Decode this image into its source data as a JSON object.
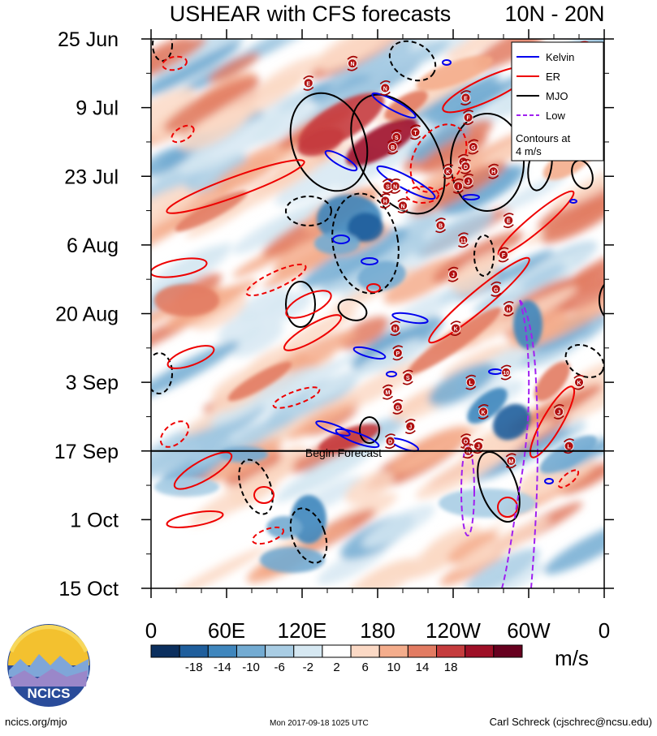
{
  "chart_data": {
    "type": "heatmap",
    "title": "USHEAR with CFS forecasts",
    "region": "10N - 20N",
    "y_tick_labels": [
      "25 Jun",
      "9 Jul",
      "23 Jul",
      "6 Aug",
      "20 Aug",
      "3 Sep",
      "17 Sep",
      "1 Oct",
      "15 Oct"
    ],
    "x_tick_labels": [
      "0",
      "60E",
      "120E",
      "180",
      "120W",
      "60W",
      "0"
    ],
    "x_values": [
      0,
      60,
      120,
      180,
      240,
      300,
      360
    ],
    "ylim_days": [
      0,
      112
    ],
    "colorbar": {
      "ticks": [
        "-18",
        "-14",
        "-10",
        "-6",
        "-2",
        "2",
        "6",
        "10",
        "14",
        "18"
      ],
      "colors": [
        "#0b2f5e",
        "#1f5e9c",
        "#3f86bd",
        "#73abd2",
        "#a9cde4",
        "#d6e8f2",
        "#ffffff",
        "#fbd9c5",
        "#f4ad8c",
        "#e27b62",
        "#c53c3d",
        "#9e1027",
        "#67001f"
      ],
      "units": "m/s"
    },
    "legend": [
      {
        "label": "Kelvin",
        "color": "#0000ee",
        "dash": false
      },
      {
        "label": "ER",
        "color": "#ee0000",
        "dash": false
      },
      {
        "label": "MJO",
        "color": "#000000",
        "dash": false
      },
      {
        "label": "Low",
        "color": "#a020f0",
        "dash": true
      }
    ],
    "legend_note": "Contours at 4 m/s",
    "forecast_line_day": 84,
    "forecast_label": "Begin Forecast",
    "storms": [
      {
        "lon": 160,
        "day": 5,
        "letter": "N"
      },
      {
        "lon": 125,
        "day": 9,
        "letter": "E"
      },
      {
        "lon": 186,
        "day": 10,
        "letter": "N"
      },
      {
        "lon": 250,
        "day": 12,
        "letter": "E"
      },
      {
        "lon": 252,
        "day": 16,
        "letter": "F"
      },
      {
        "lon": 210,
        "day": 19,
        "letter": "T"
      },
      {
        "lon": 195,
        "day": 20,
        "letter": "S"
      },
      {
        "lon": 192,
        "day": 22,
        "letter": "B"
      },
      {
        "lon": 256,
        "day": 22,
        "letter": "G"
      },
      {
        "lon": 248,
        "day": 25,
        "letter": "H"
      },
      {
        "lon": 250,
        "day": 26,
        "letter": "D"
      },
      {
        "lon": 272,
        "day": 27,
        "letter": "H"
      },
      {
        "lon": 236,
        "day": 27,
        "letter": "K"
      },
      {
        "lon": 252,
        "day": 29,
        "letter": "J"
      },
      {
        "lon": 188,
        "day": 30,
        "letter": "S"
      },
      {
        "lon": 194,
        "day": 30,
        "letter": "N"
      },
      {
        "lon": 244,
        "day": 30,
        "letter": "I"
      },
      {
        "lon": 186,
        "day": 33,
        "letter": "H"
      },
      {
        "lon": 200,
        "day": 34,
        "letter": "N"
      },
      {
        "lon": 284,
        "day": 37,
        "letter": "E"
      },
      {
        "lon": 230,
        "day": 38,
        "letter": "B"
      },
      {
        "lon": 248,
        "day": 41,
        "letter": "11"
      },
      {
        "lon": 280,
        "day": 44,
        "letter": "F"
      },
      {
        "lon": 240,
        "day": 48,
        "letter": "J"
      },
      {
        "lon": 274,
        "day": 51,
        "letter": "G"
      },
      {
        "lon": 284,
        "day": 55,
        "letter": "H"
      },
      {
        "lon": 194,
        "day": 59,
        "letter": "H"
      },
      {
        "lon": 242,
        "day": 59,
        "letter": "K"
      },
      {
        "lon": 196,
        "day": 64,
        "letter": "P"
      },
      {
        "lon": 204,
        "day": 69,
        "letter": "S"
      },
      {
        "lon": 282,
        "day": 68,
        "letter": "10"
      },
      {
        "lon": 254,
        "day": 70,
        "letter": "L"
      },
      {
        "lon": 188,
        "day": 72,
        "letter": "M"
      },
      {
        "lon": 340,
        "day": 70,
        "letter": "K"
      },
      {
        "lon": 196,
        "day": 75,
        "letter": "G"
      },
      {
        "lon": 264,
        "day": 76,
        "letter": "K"
      },
      {
        "lon": 324,
        "day": 76,
        "letter": "J"
      },
      {
        "lon": 206,
        "day": 79,
        "letter": "J"
      },
      {
        "lon": 190,
        "day": 82,
        "letter": "D"
      },
      {
        "lon": 250,
        "day": 82,
        "letter": "O"
      },
      {
        "lon": 260,
        "day": 83,
        "letter": "J"
      },
      {
        "lon": 252,
        "day": 84,
        "letter": "N"
      },
      {
        "lon": 286,
        "day": 86,
        "letter": "M"
      },
      {
        "lon": 332,
        "day": 83,
        "letter": "L"
      }
    ]
  },
  "footer": {
    "left": "ncics.org/mjo",
    "center": "Mon 2017-09-18 1025 UTC",
    "right": "Carl Schreck (cjschrec@ncsu.edu)"
  },
  "logo": {
    "text": "NCICS"
  }
}
